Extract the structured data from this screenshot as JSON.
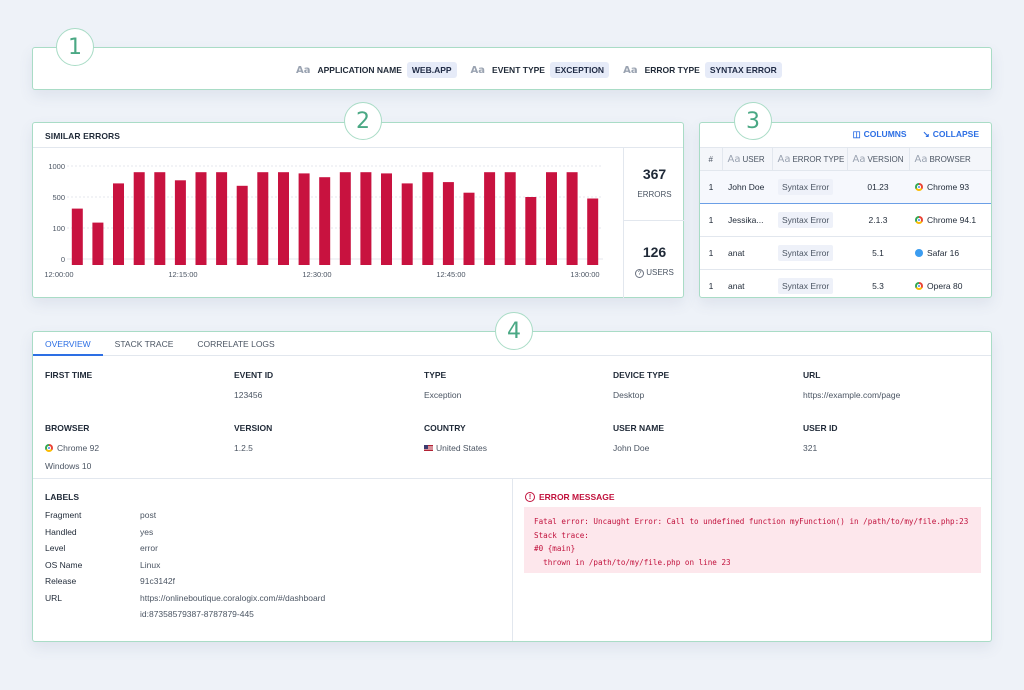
{
  "badges": [
    "1",
    "2",
    "3",
    "4"
  ],
  "filters": [
    {
      "key": "APPLICATION NAME",
      "value": "WEB.APP"
    },
    {
      "key": "EVENT TYPE",
      "value": "EXCEPTION"
    },
    {
      "key": "ERROR TYPE",
      "value": "SYNTAX ERROR"
    }
  ],
  "aa_glyph": "Aa",
  "similar": {
    "title": "SIMILAR ERRORS",
    "errors_count": "367",
    "errors_label": "ERRORS",
    "users_count": "126",
    "users_label": "USERS"
  },
  "chart_data": {
    "type": "bar",
    "y_ticks": [
      "1000",
      "500",
      "100",
      "0"
    ],
    "y_scale": "log",
    "x_ticks": [
      "12:00:00",
      "12:15:00",
      "12:30:00",
      "12:45:00",
      "13:00:00"
    ],
    "values": [
      350,
      170,
      720,
      900,
      900,
      770,
      900,
      900,
      680,
      900,
      900,
      880,
      820,
      900,
      900,
      880,
      720,
      900,
      740,
      570,
      900,
      900,
      500,
      900,
      900,
      480
    ],
    "bar_color": "#c8123f"
  },
  "grid": {
    "columns_label": "COLUMNS",
    "collapse_label": "COLLAPSE",
    "headers": [
      "#",
      "USER",
      "ERROR TYPE",
      "VERSION",
      "BROWSER"
    ],
    "rows": [
      {
        "n": "1",
        "user": "John Doe",
        "error": "Syntax Error",
        "version": "01.23",
        "browser": "Chrome 93",
        "icon": "chrome"
      },
      {
        "n": "1",
        "user": "Jessika...",
        "error": "Syntax Error",
        "version": "2.1.3",
        "browser": "Chrome 94.1",
        "icon": "chrome"
      },
      {
        "n": "1",
        "user": "anat",
        "error": "Syntax Error",
        "version": "5.1",
        "browser": "Safar 16",
        "icon": "safari"
      },
      {
        "n": "1",
        "user": "anat",
        "error": "Syntax Error",
        "version": "5.3",
        "browser": "Opera 80",
        "icon": "chrome"
      }
    ]
  },
  "details": {
    "tabs": [
      "OVERVIEW",
      "STACK TRACE",
      "CORRELATE LOGS"
    ],
    "first_time_label": "FIRST TIME",
    "event_id_label": "EVENT ID",
    "event_id": "123456",
    "type_label": "TYPE",
    "type": "Exception",
    "device_label": "DEVICE TYPE",
    "device": "Desktop",
    "url_label": "URL",
    "url": "https://example.com/page",
    "browser_label": "BROWSER",
    "browser": "Chrome 92",
    "os": "Windows 10",
    "version_label": "VERSION",
    "version": "1.2.5",
    "country_label": "COUNTRY",
    "country": "United States",
    "username_label": "USER NAME",
    "username": "John Doe",
    "userid_label": "USER ID",
    "userid": "321",
    "labels_title": "LABELS",
    "labels": [
      {
        "k": "Fragment",
        "v": "post"
      },
      {
        "k": "Handled",
        "v": "yes"
      },
      {
        "k": "Level",
        "v": "error"
      },
      {
        "k": "OS Name",
        "v": "Linux"
      },
      {
        "k": "Release",
        "v": "91c3142f"
      },
      {
        "k": "URL",
        "v": "https://onlineboutique.coralogix.com/#/dashboard"
      },
      {
        "k": "",
        "v": "id:87358579387-8787879-445"
      }
    ],
    "error_title": "ERROR MESSAGE",
    "error_lines": [
      "Fatal error: Uncaught Error: Call to undefined function myFunction() in /path/to/my/file.php:23",
      "Stack trace:",
      "#0 {main}",
      "  thrown in /path/to/my/file.php on line 23"
    ]
  }
}
